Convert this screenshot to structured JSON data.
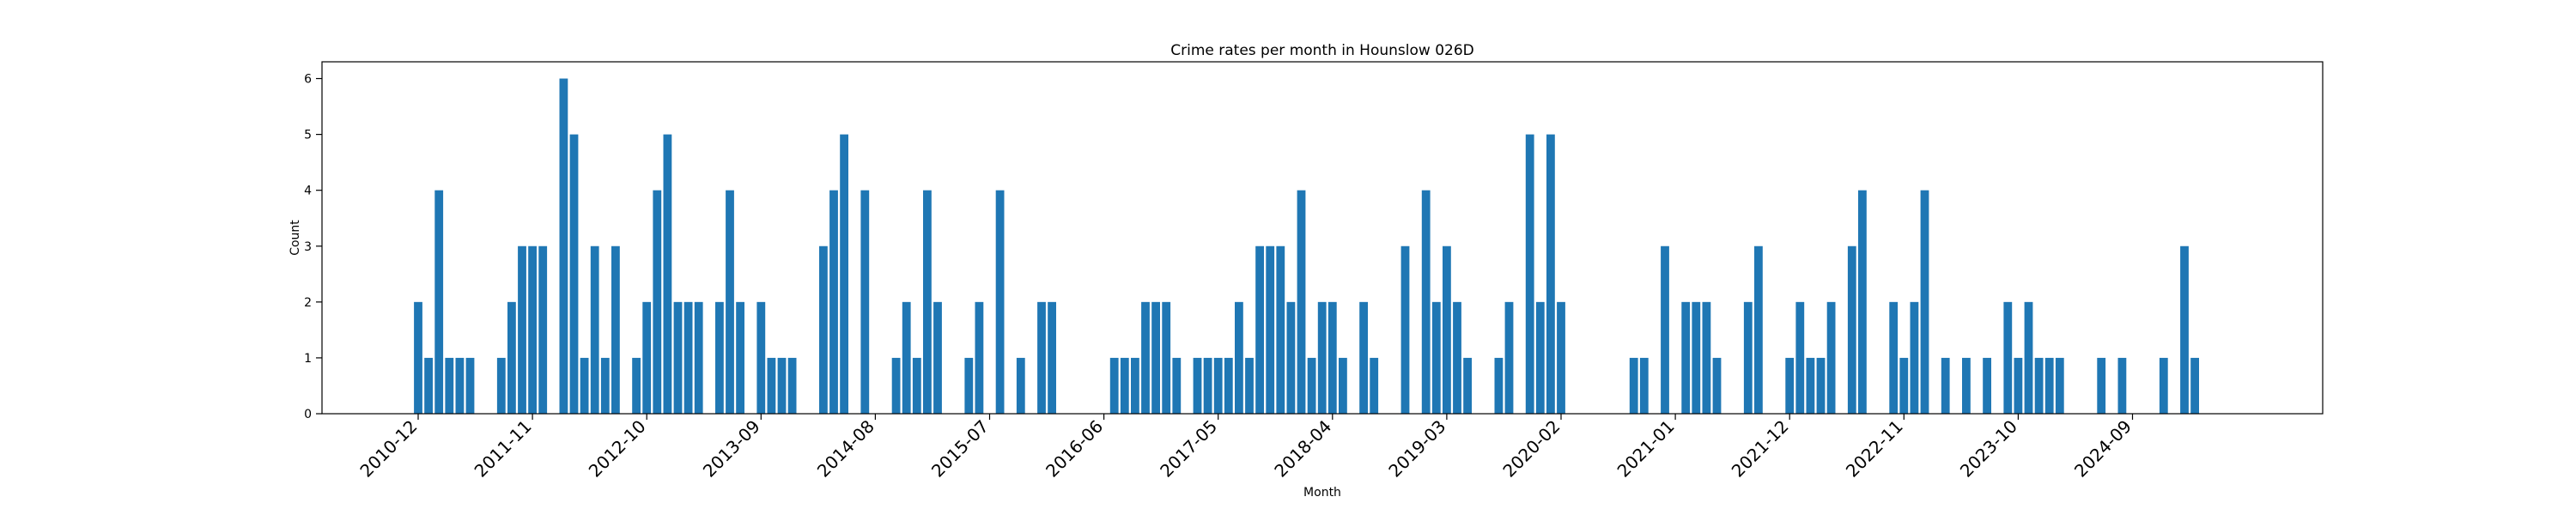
{
  "chart_data": {
    "type": "bar",
    "title": "Crime rates per month in Hounslow 026D",
    "xlabel": "Month",
    "ylabel": "Count",
    "ylim": [
      0,
      6.3
    ],
    "yticks": [
      0,
      1,
      2,
      3,
      4,
      5,
      6
    ],
    "start_month": "2010-12",
    "end_month": "2025-12",
    "tick_labels": [
      "2010-12",
      "2011-11",
      "2012-10",
      "2013-09",
      "2014-08",
      "2015-07",
      "2016-06",
      "2017-05",
      "2018-04",
      "2019-03",
      "2020-02",
      "2021-01",
      "2021-12",
      "2022-11",
      "2023-10",
      "2024-09"
    ],
    "bar_color": "#1f77b4",
    "grid": false,
    "bars": [
      {
        "month": "2010-12",
        "value": 2
      },
      {
        "month": "2011-01",
        "value": 1
      },
      {
        "month": "2011-02",
        "value": 4
      },
      {
        "month": "2011-03",
        "value": 1
      },
      {
        "month": "2011-04",
        "value": 1
      },
      {
        "month": "2011-05",
        "value": 1
      },
      {
        "month": "2011-08",
        "value": 1
      },
      {
        "month": "2011-09",
        "value": 2
      },
      {
        "month": "2011-10",
        "value": 3
      },
      {
        "month": "2011-11",
        "value": 3
      },
      {
        "month": "2011-12",
        "value": 3
      },
      {
        "month": "2012-02",
        "value": 6
      },
      {
        "month": "2012-03",
        "value": 5
      },
      {
        "month": "2012-04",
        "value": 1
      },
      {
        "month": "2012-05",
        "value": 3
      },
      {
        "month": "2012-06",
        "value": 1
      },
      {
        "month": "2012-07",
        "value": 3
      },
      {
        "month": "2012-09",
        "value": 1
      },
      {
        "month": "2012-10",
        "value": 2
      },
      {
        "month": "2012-11",
        "value": 4
      },
      {
        "month": "2012-12",
        "value": 5
      },
      {
        "month": "2013-01",
        "value": 2
      },
      {
        "month": "2013-02",
        "value": 2
      },
      {
        "month": "2013-03",
        "value": 2
      },
      {
        "month": "2013-05",
        "value": 2
      },
      {
        "month": "2013-06",
        "value": 4
      },
      {
        "month": "2013-07",
        "value": 2
      },
      {
        "month": "2013-09",
        "value": 2
      },
      {
        "month": "2013-10",
        "value": 1
      },
      {
        "month": "2013-11",
        "value": 1
      },
      {
        "month": "2013-12",
        "value": 1
      },
      {
        "month": "2014-03",
        "value": 3
      },
      {
        "month": "2014-04",
        "value": 4
      },
      {
        "month": "2014-05",
        "value": 5
      },
      {
        "month": "2014-07",
        "value": 4
      },
      {
        "month": "2014-10",
        "value": 1
      },
      {
        "month": "2014-11",
        "value": 2
      },
      {
        "month": "2014-12",
        "value": 1
      },
      {
        "month": "2015-01",
        "value": 4
      },
      {
        "month": "2015-02",
        "value": 2
      },
      {
        "month": "2015-05",
        "value": 1
      },
      {
        "month": "2015-06",
        "value": 2
      },
      {
        "month": "2015-08",
        "value": 4
      },
      {
        "month": "2015-10",
        "value": 1
      },
      {
        "month": "2015-12",
        "value": 2
      },
      {
        "month": "2016-01",
        "value": 2
      },
      {
        "month": "2016-07",
        "value": 1
      },
      {
        "month": "2016-08",
        "value": 1
      },
      {
        "month": "2016-09",
        "value": 1
      },
      {
        "month": "2016-10",
        "value": 2
      },
      {
        "month": "2016-11",
        "value": 2
      },
      {
        "month": "2016-12",
        "value": 2
      },
      {
        "month": "2017-01",
        "value": 1
      },
      {
        "month": "2017-03",
        "value": 1
      },
      {
        "month": "2017-04",
        "value": 1
      },
      {
        "month": "2017-05",
        "value": 1
      },
      {
        "month": "2017-06",
        "value": 1
      },
      {
        "month": "2017-07",
        "value": 2
      },
      {
        "month": "2017-08",
        "value": 1
      },
      {
        "month": "2017-09",
        "value": 3
      },
      {
        "month": "2017-10",
        "value": 3
      },
      {
        "month": "2017-11",
        "value": 3
      },
      {
        "month": "2017-12",
        "value": 2
      },
      {
        "month": "2018-01",
        "value": 4
      },
      {
        "month": "2018-02",
        "value": 1
      },
      {
        "month": "2018-03",
        "value": 2
      },
      {
        "month": "2018-04",
        "value": 2
      },
      {
        "month": "2018-05",
        "value": 1
      },
      {
        "month": "2018-07",
        "value": 2
      },
      {
        "month": "2018-08",
        "value": 1
      },
      {
        "month": "2018-11",
        "value": 3
      },
      {
        "month": "2019-01",
        "value": 4
      },
      {
        "month": "2019-02",
        "value": 2
      },
      {
        "month": "2019-03",
        "value": 3
      },
      {
        "month": "2019-04",
        "value": 2
      },
      {
        "month": "2019-05",
        "value": 1
      },
      {
        "month": "2019-08",
        "value": 1
      },
      {
        "month": "2019-09",
        "value": 2
      },
      {
        "month": "2019-11",
        "value": 5
      },
      {
        "month": "2019-12",
        "value": 2
      },
      {
        "month": "2020-01",
        "value": 5
      },
      {
        "month": "2020-02",
        "value": 2
      },
      {
        "month": "2020-09",
        "value": 1
      },
      {
        "month": "2020-10",
        "value": 1
      },
      {
        "month": "2020-12",
        "value": 3
      },
      {
        "month": "2021-02",
        "value": 2
      },
      {
        "month": "2021-03",
        "value": 2
      },
      {
        "month": "2021-04",
        "value": 2
      },
      {
        "month": "2021-05",
        "value": 1
      },
      {
        "month": "2021-08",
        "value": 2
      },
      {
        "month": "2021-09",
        "value": 3
      },
      {
        "month": "2021-12",
        "value": 1
      },
      {
        "month": "2022-01",
        "value": 2
      },
      {
        "month": "2022-02",
        "value": 1
      },
      {
        "month": "2022-03",
        "value": 1
      },
      {
        "month": "2022-04",
        "value": 2
      },
      {
        "month": "2022-06",
        "value": 3
      },
      {
        "month": "2022-07",
        "value": 4
      },
      {
        "month": "2022-10",
        "value": 2
      },
      {
        "month": "2022-11",
        "value": 1
      },
      {
        "month": "2022-12",
        "value": 2
      },
      {
        "month": "2023-01",
        "value": 4
      },
      {
        "month": "2023-03",
        "value": 1
      },
      {
        "month": "2023-05",
        "value": 1
      },
      {
        "month": "2023-07",
        "value": 1
      },
      {
        "month": "2023-09",
        "value": 2
      },
      {
        "month": "2023-10",
        "value": 1
      },
      {
        "month": "2023-11",
        "value": 2
      },
      {
        "month": "2023-12",
        "value": 1
      },
      {
        "month": "2024-01",
        "value": 1
      },
      {
        "month": "2024-02",
        "value": 1
      },
      {
        "month": "2024-06",
        "value": 1
      },
      {
        "month": "2024-08",
        "value": 1
      },
      {
        "month": "2024-12",
        "value": 1
      },
      {
        "month": "2025-02",
        "value": 3
      },
      {
        "month": "2025-03",
        "value": 1
      }
    ]
  }
}
